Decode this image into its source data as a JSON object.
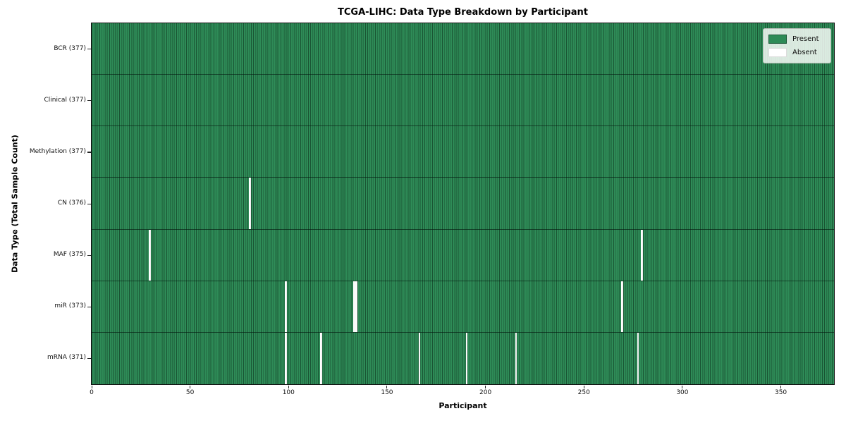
{
  "figure_title": "TCGA-LIHC: Data Type Breakdown by Participant",
  "chart_data": {
    "type": "heatmap",
    "title": "TCGA-LIHC: Data Type Breakdown by Participant",
    "xlabel": "Participant",
    "ylabel": "Data Type (Total Sample Count)",
    "x_ticks": [
      0,
      50,
      100,
      150,
      200,
      250,
      300,
      350
    ],
    "xlim": [
      0,
      377
    ],
    "n_participants": 377,
    "grid": false,
    "colors": {
      "present": "#2e8b57",
      "absent": "#ffffff",
      "cell_edge": "rgba(8,38,22,0.55)"
    },
    "legend": {
      "position": "upper right",
      "entries": [
        {
          "label": "Present",
          "color": "#2e8b57"
        },
        {
          "label": "Absent",
          "color": "#ffffff"
        }
      ]
    },
    "rows": [
      {
        "data_type": "BCR",
        "label": "BCR (377)",
        "present_count": 377,
        "absent_count": 0,
        "absent_participants": []
      },
      {
        "data_type": "Clinical",
        "label": "Clinical (377)",
        "present_count": 377,
        "absent_count": 0,
        "absent_participants": []
      },
      {
        "data_type": "Methylation",
        "label": "Methylation (377)",
        "present_count": 377,
        "absent_count": 0,
        "absent_participants": []
      },
      {
        "data_type": "CN",
        "label": "CN (376)",
        "present_count": 376,
        "absent_count": 1,
        "absent_participants": [
          80
        ]
      },
      {
        "data_type": "MAF",
        "label": "MAF (375)",
        "present_count": 375,
        "absent_count": 2,
        "absent_participants": [
          29,
          279
        ]
      },
      {
        "data_type": "miR",
        "label": "miR (373)",
        "present_count": 373,
        "absent_count": 4,
        "absent_participants": [
          98,
          133,
          134,
          269
        ]
      },
      {
        "data_type": "mRNA",
        "label": "mRNA (371)",
        "present_count": 371,
        "absent_count": 6,
        "absent_participants": [
          98,
          116,
          166,
          190,
          215,
          277
        ]
      }
    ]
  }
}
